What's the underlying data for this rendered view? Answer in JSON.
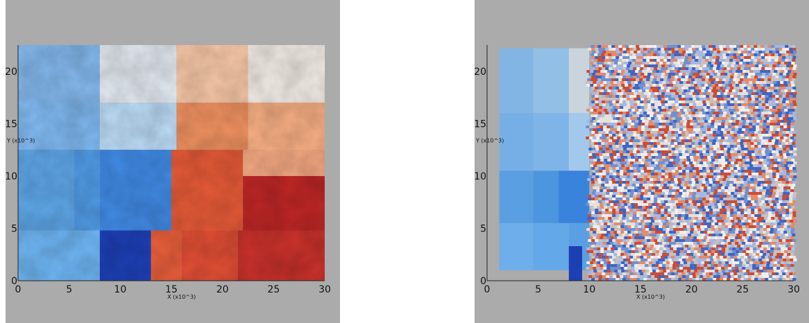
{
  "chart_data": [
    {
      "type": "heatmap",
      "title": "",
      "xlabel": "X (x10^3)",
      "ylabel": "Y (x10^3)",
      "xlim": [
        0,
        30
      ],
      "ylim": [
        0,
        22.5
      ],
      "xticks": [
        "0",
        "5",
        "10",
        "15",
        "20",
        "25",
        "30"
      ],
      "yticks": [
        "0",
        "5",
        "10",
        "15",
        "20"
      ],
      "grid": false,
      "surface": "relief",
      "regions": [
        {
          "x": [
            0,
            8
          ],
          "y": [
            17,
            22.5
          ],
          "color": "#7fb2e5"
        },
        {
          "x": [
            8,
            15.5
          ],
          "y": [
            17,
            22.5
          ],
          "color": "#dde3ea"
        },
        {
          "x": [
            15.5,
            22.5
          ],
          "y": [
            17,
            22.5
          ],
          "color": "#f0c2a2"
        },
        {
          "x": [
            22.5,
            30
          ],
          "y": [
            17,
            22.5
          ],
          "color": "#ece6e0"
        },
        {
          "x": [
            0,
            8
          ],
          "y": [
            12.5,
            17
          ],
          "color": "#7db5ec"
        },
        {
          "x": [
            8,
            15.5
          ],
          "y": [
            12.5,
            17
          ],
          "color": "#b7d6f0"
        },
        {
          "x": [
            15.5,
            22.5
          ],
          "y": [
            12.5,
            17
          ],
          "color": "#e88d5e"
        },
        {
          "x": [
            22.5,
            30
          ],
          "y": [
            12.5,
            17
          ],
          "color": "#f1aa80"
        },
        {
          "x": [
            0,
            5.5
          ],
          "y": [
            4.8,
            12.5
          ],
          "color": "#5ca2e2"
        },
        {
          "x": [
            5.5,
            8
          ],
          "y": [
            4.8,
            12.5
          ],
          "color": "#4e97df"
        },
        {
          "x": [
            8,
            15
          ],
          "y": [
            4.8,
            12.5
          ],
          "color": "#3f86de"
        },
        {
          "x": [
            15,
            22
          ],
          "y": [
            4.8,
            12.5
          ],
          "color": "#df5836"
        },
        {
          "x": [
            22,
            30
          ],
          "y": [
            4.8,
            10
          ],
          "color": "#b92625"
        },
        {
          "x": [
            22,
            30
          ],
          "y": [
            10,
            12.5
          ],
          "color": "#eba27d"
        },
        {
          "x": [
            0,
            8
          ],
          "y": [
            0,
            4.8
          ],
          "color": "#6bb0ec"
        },
        {
          "x": [
            8,
            13
          ],
          "y": [
            0,
            4.8
          ],
          "color": "#1d3fb4"
        },
        {
          "x": [
            13,
            16
          ],
          "y": [
            0,
            4.8
          ],
          "color": "#e25c3a"
        },
        {
          "x": [
            16,
            21.5
          ],
          "y": [
            0,
            4.8
          ],
          "color": "#da4c33"
        },
        {
          "x": [
            21.5,
            30
          ],
          "y": [
            0,
            4.8
          ],
          "color": "#c4302a"
        }
      ]
    },
    {
      "type": "heatmap",
      "title": "",
      "xlabel": "X (x10^3)",
      "ylabel": "Y (x10^3)",
      "xlim": [
        0,
        30
      ],
      "ylim": [
        0,
        22.5
      ],
      "xticks": [
        "0",
        "5",
        "10",
        "15",
        "20",
        "25",
        "30"
      ],
      "yticks": [
        "0",
        "5",
        "10",
        "15",
        "20"
      ],
      "grid": false,
      "surface": "noise",
      "noise_colors": [
        "#c8c2be",
        "#e7e2de",
        "#6f8fd0",
        "#a4b8e4",
        "#cf4a30",
        "#e38b6c",
        "#f2f0ee",
        "#3e64c5"
      ],
      "noise_start_x": 10,
      "regions": [
        {
          "x": [
            1.2,
            4.5
          ],
          "y": [
            16,
            22.2
          ],
          "color": "#82b5e3"
        },
        {
          "x": [
            4.5,
            8
          ],
          "y": [
            16,
            22.2
          ],
          "color": "#92bfe6"
        },
        {
          "x": [
            8,
            10
          ],
          "y": [
            16,
            22.2
          ],
          "color": "#c9d4dd"
        },
        {
          "x": [
            1.2,
            4.5
          ],
          "y": [
            10.5,
            16
          ],
          "color": "#76afe6"
        },
        {
          "x": [
            4.5,
            8
          ],
          "y": [
            10.5,
            16
          ],
          "color": "#7eb4e8"
        },
        {
          "x": [
            8,
            10
          ],
          "y": [
            10.5,
            16
          ],
          "color": "#a2c9ec"
        },
        {
          "x": [
            1.2,
            4.5
          ],
          "y": [
            5.5,
            10.5
          ],
          "color": "#5a9fe2"
        },
        {
          "x": [
            4.5,
            7
          ],
          "y": [
            5.5,
            10.5
          ],
          "color": "#4c95df"
        },
        {
          "x": [
            7,
            10
          ],
          "y": [
            5.5,
            10.5
          ],
          "color": "#3983dd"
        },
        {
          "x": [
            1.2,
            4.5
          ],
          "y": [
            1,
            5.5
          ],
          "color": "#6eaeea"
        },
        {
          "x": [
            4.5,
            8
          ],
          "y": [
            1,
            5.5
          ],
          "color": "#63a8e8"
        },
        {
          "x": [
            8,
            10
          ],
          "y": [
            1,
            5.5
          ],
          "color": "#5a9fe4"
        },
        {
          "x": [
            8,
            9.3
          ],
          "y": [
            0,
            3.3
          ],
          "color": "#1d3fb4"
        }
      ]
    }
  ]
}
